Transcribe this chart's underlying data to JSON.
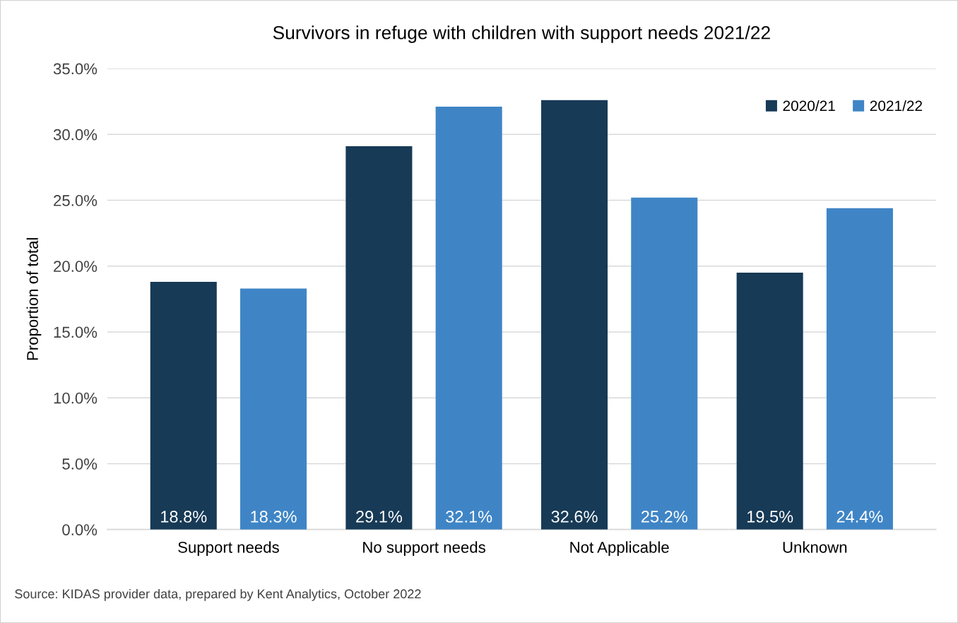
{
  "chart_data": {
    "type": "bar",
    "title": "Survivors in refuge with children with support needs 2021/22",
    "ylabel": "Proportion of total",
    "categories": [
      "Support needs",
      "No support needs",
      "Not Applicable",
      "Unknown"
    ],
    "series": [
      {
        "name": "2020/21",
        "color": "#173a56",
        "values": [
          18.8,
          29.1,
          32.6,
          19.5
        ],
        "value_labels": [
          "18.8%",
          "29.1%",
          "32.6%",
          "19.5%"
        ]
      },
      {
        "name": "2021/22",
        "color": "#3f85c6",
        "values": [
          18.3,
          32.1,
          25.2,
          24.4
        ],
        "value_labels": [
          "18.3%",
          "32.1%",
          "25.2%",
          "24.4%"
        ]
      }
    ],
    "ylim": [
      0,
      35
    ],
    "yticks": [
      {
        "value": 0,
        "label": "0.0%"
      },
      {
        "value": 5,
        "label": "5.0%"
      },
      {
        "value": 10,
        "label": "10.0%"
      },
      {
        "value": 15,
        "label": "15.0%"
      },
      {
        "value": 20,
        "label": "20.0%"
      },
      {
        "value": 25,
        "label": "25.0%"
      },
      {
        "value": 30,
        "label": "30.0%"
      },
      {
        "value": 35,
        "label": "35.0%"
      }
    ],
    "grid": "y",
    "legend": "top right",
    "annotations": [
      "Source: KIDAS provider data, prepared by Kent Analytics, October 2022"
    ]
  }
}
